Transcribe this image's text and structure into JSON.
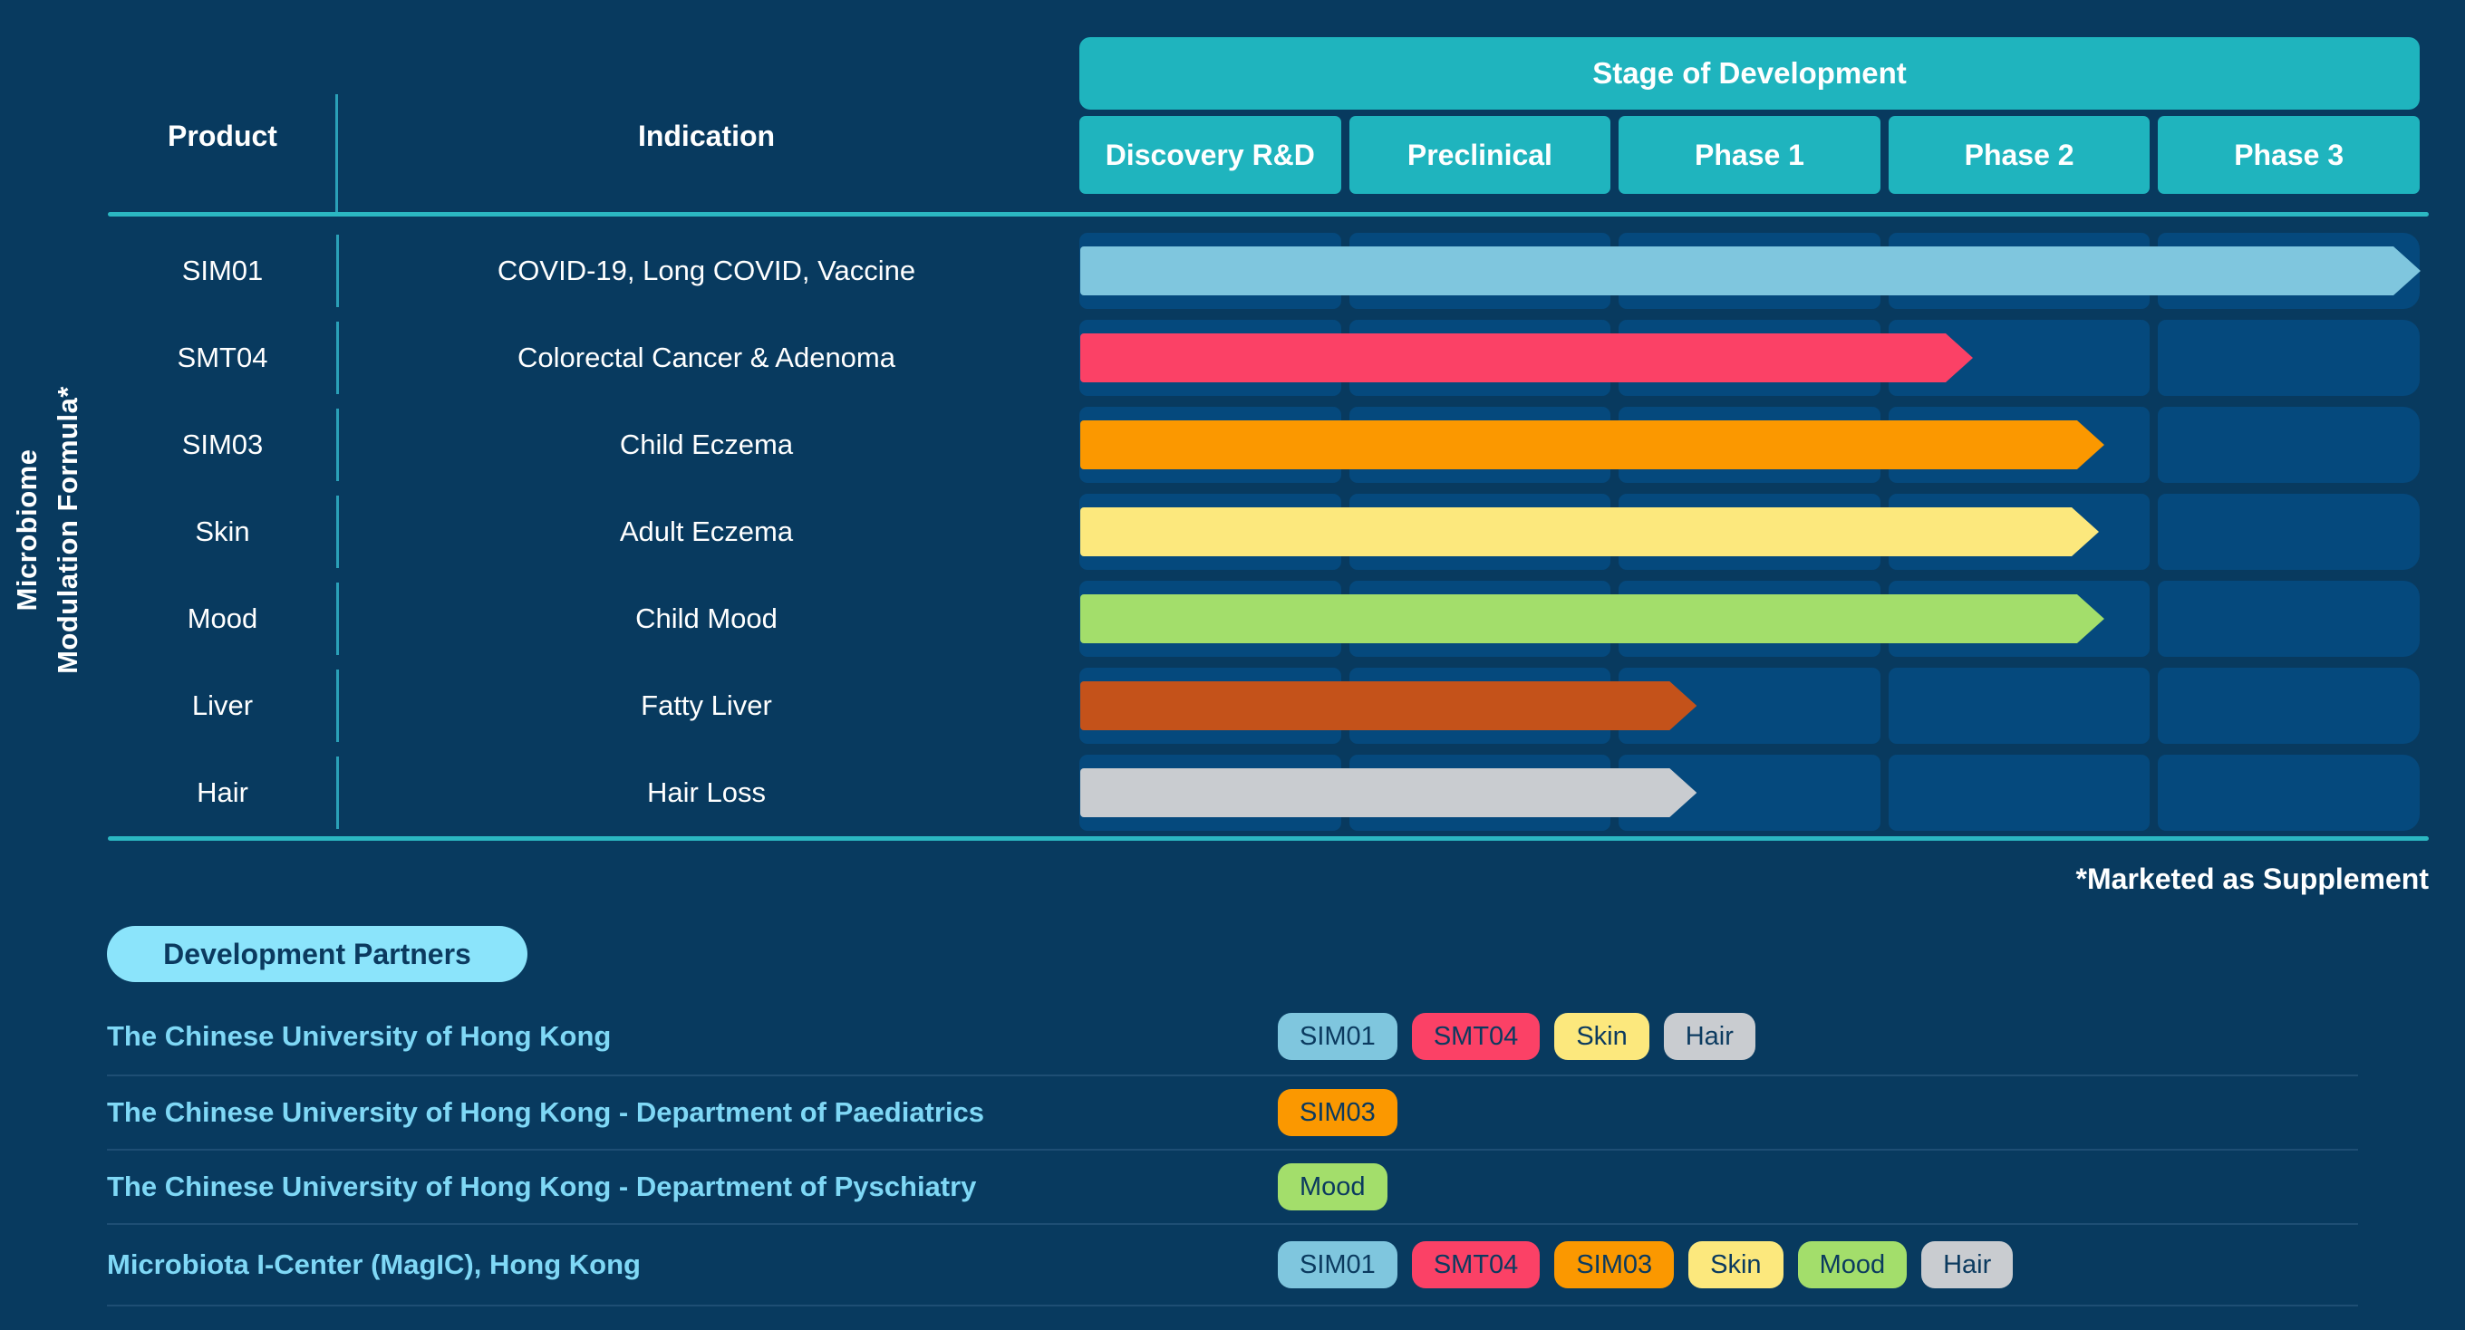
{
  "colors": {
    "page_bg": "#083A5F",
    "cell_bg": "#05497D",
    "teal": "#1FB4BE",
    "line_teal": "#2BB7C2",
    "line_teal_dim": "#2AA0B8",
    "pill_bg": "#8BE4FB",
    "partner_text": "#7FD8F6",
    "partner_divider": "#1E4E74",
    "navy_text": "#0B3A5F",
    "header_text": "#FFFFFF"
  },
  "chart_data": {
    "type": "bar",
    "title": "Stage of Development",
    "columns": [
      "Discovery R&D",
      "Preclinical",
      "Phase 1",
      "Phase 2",
      "Phase 3"
    ],
    "col_headers": {
      "product": "Product",
      "indication": "Indication"
    },
    "row_group_label": "Microbiome\nModulation Formula*",
    "stage_axis_range": [
      0,
      5
    ],
    "rows": [
      {
        "product": "SIM01",
        "indication": "COVID-19, Long COVID, Vaccine",
        "end_stage": 5.0,
        "color": "#7FC6DE"
      },
      {
        "product": "SMT04",
        "indication": "Colorectal Cancer & Adenoma",
        "end_stage": 3.33,
        "color": "#FB4166"
      },
      {
        "product": "SIM03",
        "indication": "Child Eczema",
        "end_stage": 3.82,
        "color": "#FB9800"
      },
      {
        "product": "Skin",
        "indication": "Adult Eczema",
        "end_stage": 3.8,
        "color": "#FCE87D"
      },
      {
        "product": "Mood",
        "indication": "Child Mood",
        "end_stage": 3.82,
        "color": "#A3DE6B"
      },
      {
        "product": "Liver",
        "indication": "Fatty Liver",
        "end_stage": 2.3,
        "color": "#C4521A"
      },
      {
        "product": "Hair",
        "indication": "Hair Loss",
        "end_stage": 2.3,
        "color": "#C9CCD0"
      }
    ],
    "footnote": "*Marketed as Supplement",
    "legend": "none",
    "grid": "column cells shown as rounded rectangles"
  },
  "partners": {
    "heading": "Development Partners",
    "badge_colors": {
      "SIM01": "#7FC6DE",
      "SMT04": "#FB4166",
      "SIM03": "#FB9800",
      "Skin": "#FCE87D",
      "Mood": "#A3DE6B",
      "Hair": "#C9CCD0"
    },
    "items": [
      {
        "name": "The Chinese University of Hong Kong",
        "badges": [
          "SIM01",
          "SMT04",
          "Skin",
          "Hair"
        ]
      },
      {
        "name": "The Chinese University of Hong Kong - Department of Paediatrics",
        "badges": [
          "SIM03"
        ]
      },
      {
        "name": "The Chinese University of Hong Kong - Department of Pyschiatry",
        "badges": [
          "Mood"
        ]
      },
      {
        "name": "Microbiota I-Center (MagIC), Hong Kong",
        "badges": [
          "SIM01",
          "SMT04",
          "SIM03",
          "Skin",
          "Mood",
          "Hair"
        ]
      }
    ]
  }
}
